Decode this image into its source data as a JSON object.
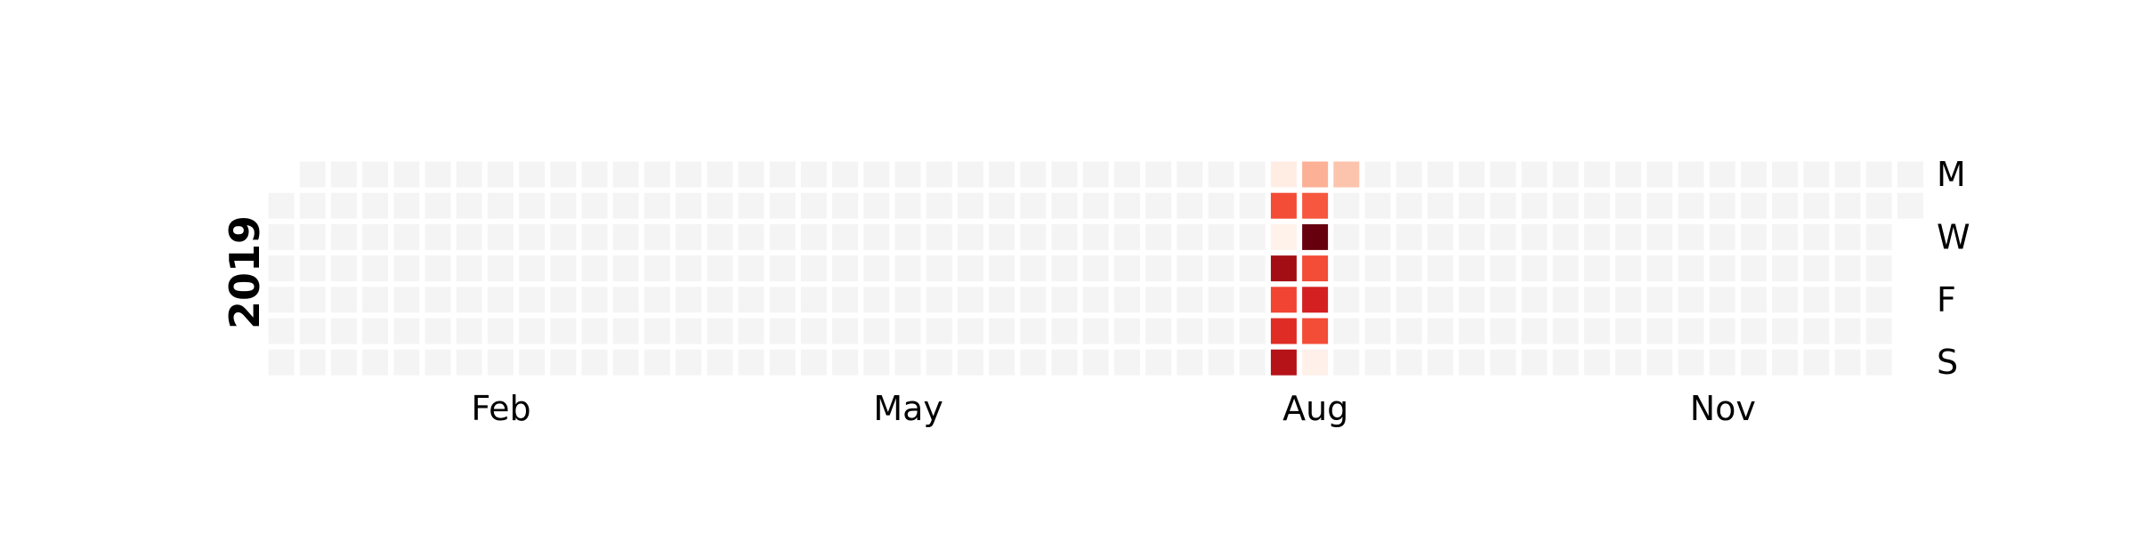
{
  "chart_data": {
    "type": "heatmap",
    "year": "2019",
    "month_labels": [
      {
        "label": "Feb",
        "week": 7
      },
      {
        "label": "May",
        "week": 20
      },
      {
        "label": "Aug",
        "week": 33
      },
      {
        "label": "Nov",
        "week": 46
      }
    ],
    "day_labels": [
      {
        "label": "M",
        "day": 0
      },
      {
        "label": "W",
        "day": 2
      },
      {
        "label": "F",
        "day": 4
      },
      {
        "label": "S",
        "day": 6
      }
    ],
    "weeks": 53,
    "first_day_offset": 1,
    "days_in_year": 365,
    "colorscale": "Reds",
    "empty_color": "#f4f4f4",
    "active_days": [
      {
        "date": "2019-08-12",
        "value": 0.05
      },
      {
        "date": "2019-08-13",
        "value": 0.58
      },
      {
        "date": "2019-08-14",
        "value": 0.02
      },
      {
        "date": "2019-08-15",
        "value": 0.88
      },
      {
        "date": "2019-08-16",
        "value": 0.6
      },
      {
        "date": "2019-08-17",
        "value": 0.68
      },
      {
        "date": "2019-08-18",
        "value": 0.82
      },
      {
        "date": "2019-08-19",
        "value": 0.28
      },
      {
        "date": "2019-08-20",
        "value": 0.55
      },
      {
        "date": "2019-08-21",
        "value": 1.0
      },
      {
        "date": "2019-08-22",
        "value": 0.58
      },
      {
        "date": "2019-08-23",
        "value": 0.72
      },
      {
        "date": "2019-08-24",
        "value": 0.58
      },
      {
        "date": "2019-08-25",
        "value": 0.03
      },
      {
        "date": "2019-08-26",
        "value": 0.22
      }
    ]
  }
}
